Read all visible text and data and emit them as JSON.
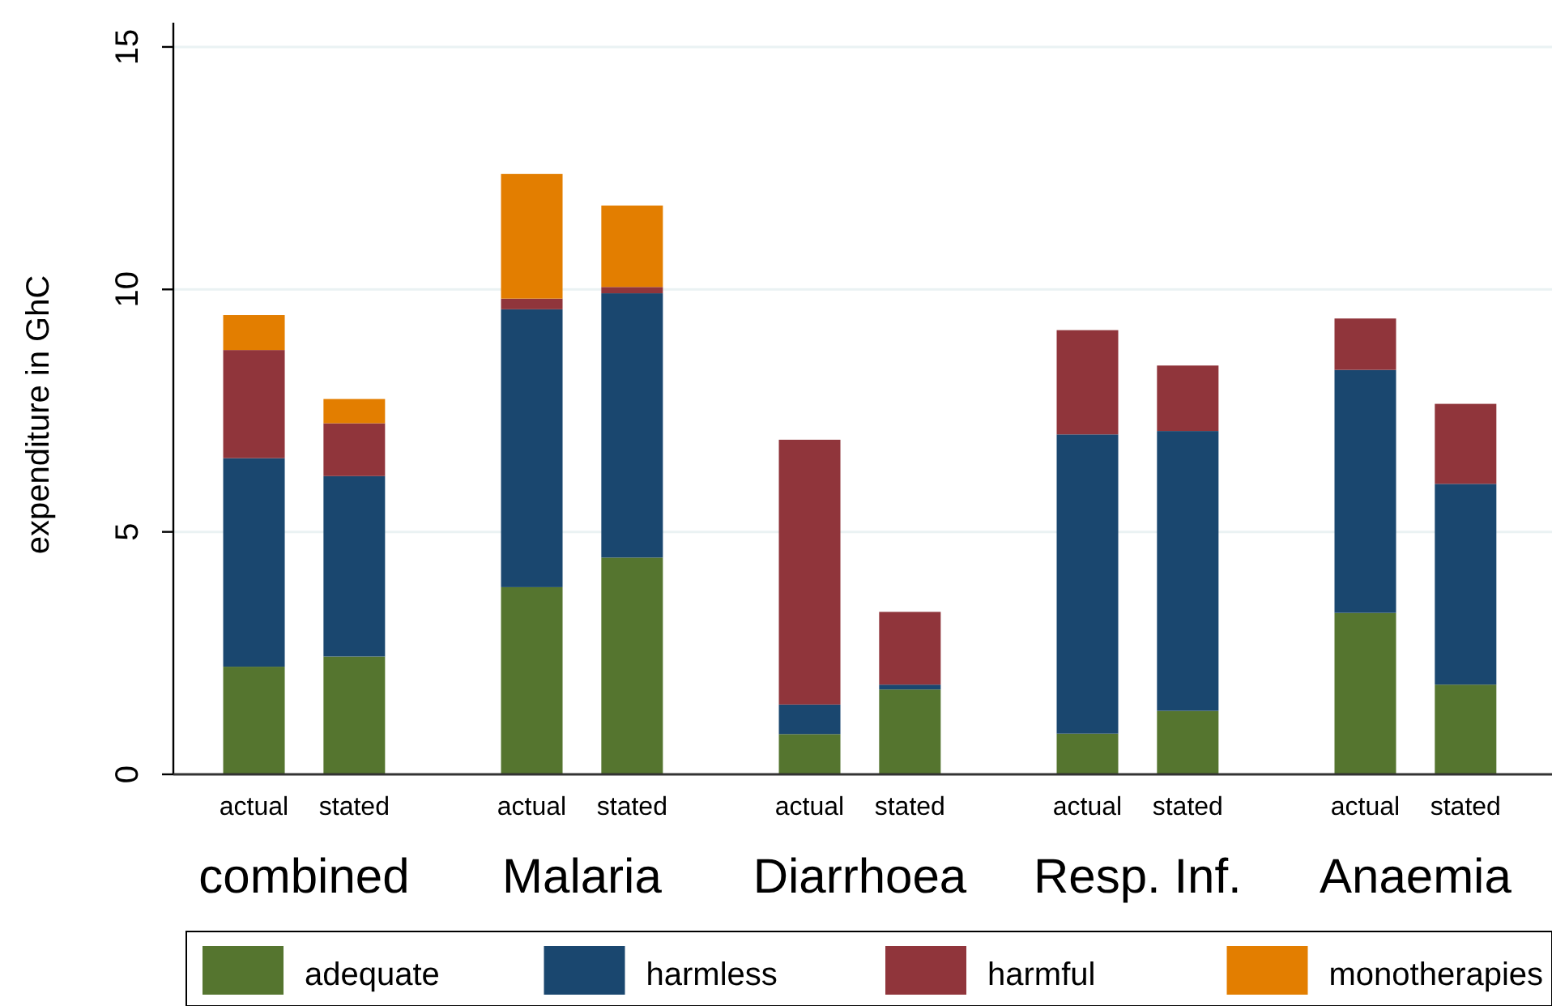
{
  "chart_data": {
    "type": "bar",
    "stacked": true,
    "ylabel": "expenditure in GhC",
    "categories": [
      "actual",
      "stated",
      "actual",
      "stated",
      "actual",
      "stated",
      "actual",
      "stated",
      "actual",
      "stated"
    ],
    "annotations": [
      "combined",
      "Malaria",
      "Diarrhoea",
      "Resp. Inf.",
      "Anaemia"
    ],
    "series": [
      {
        "name": "adequate",
        "color": "#55752f",
        "values": [
          2.22,
          2.43,
          3.86,
          4.47,
          0.83,
          1.75,
          0.84,
          1.31,
          3.33,
          1.85
        ]
      },
      {
        "name": "harmless",
        "color": "#1a476f",
        "values": [
          4.3,
          3.72,
          5.73,
          5.45,
          0.61,
          0.1,
          6.17,
          5.77,
          5.01,
          4.14
        ]
      },
      {
        "name": "harmful",
        "color": "#90353b",
        "values": [
          2.23,
          1.09,
          0.22,
          0.13,
          5.46,
          1.5,
          2.15,
          1.35,
          1.06,
          1.65
        ]
      },
      {
        "name": "monotherapies",
        "color": "#e37e00",
        "values": [
          0.72,
          0.5,
          2.57,
          1.68,
          null,
          null,
          null,
          null,
          null,
          null
        ]
      }
    ],
    "ylim": [
      0,
      15.5
    ],
    "yticks": [
      0,
      5,
      10,
      15
    ],
    "grid": "y",
    "legend": "bottom"
  }
}
